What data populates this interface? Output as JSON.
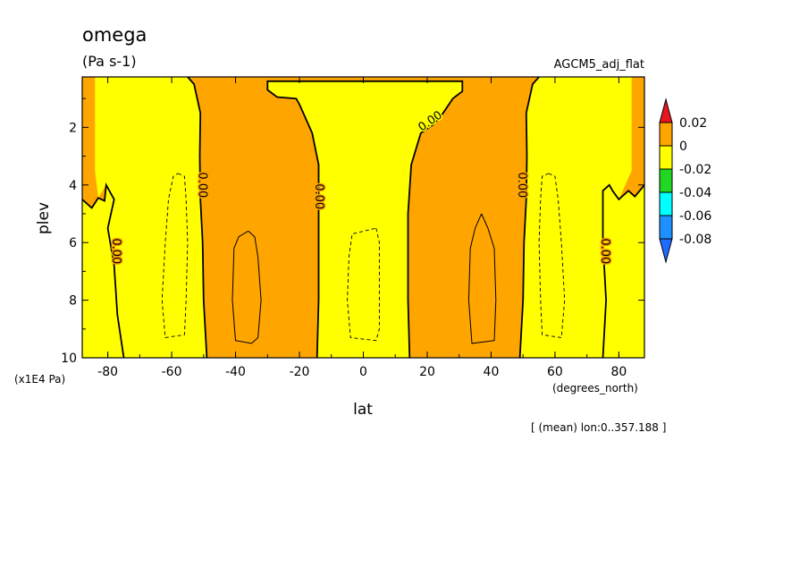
{
  "chart_data": {
    "type": "heatmap",
    "title": "omega",
    "units": "(Pa s-1)",
    "dataset_label": "AGCM5_adj_flat",
    "xlabel": "lat",
    "x_units": "(degrees_north)",
    "ylabel": "plev",
    "y_units": "(x1E4 Pa)",
    "footnote": "[ (mean) lon:0..357.188 ]",
    "xlim": [
      -88,
      88
    ],
    "ylim": [
      10,
      0.25
    ],
    "x_ticks": [
      {
        "value": -80,
        "label": "-80"
      },
      {
        "value": -60,
        "label": "-60"
      },
      {
        "value": -40,
        "label": "-40"
      },
      {
        "value": -20,
        "label": "-20"
      },
      {
        "value": 0,
        "label": "0"
      },
      {
        "value": 20,
        "label": "20"
      },
      {
        "value": 40,
        "label": "40"
      },
      {
        "value": 60,
        "label": "60"
      },
      {
        "value": 80,
        "label": "80"
      }
    ],
    "y_ticks": [
      {
        "value": 2,
        "label": "2"
      },
      {
        "value": 4,
        "label": "4"
      },
      {
        "value": 6,
        "label": "6"
      },
      {
        "value": 8,
        "label": "8"
      },
      {
        "value": 10,
        "label": "10"
      }
    ],
    "colorbar": {
      "levels": [
        {
          "label": "0.02",
          "value": 0.02
        },
        {
          "label": "0",
          "value": 0
        },
        {
          "label": "-0.02",
          "value": -0.02
        },
        {
          "label": "-0.04",
          "value": -0.04
        },
        {
          "label": "-0.06",
          "value": -0.06
        },
        {
          "label": "-0.08",
          "value": -0.08
        }
      ],
      "colors": [
        "#e8141e",
        "#ffa500",
        "#ffff00",
        "#21d721",
        "#00ffff",
        "#1e90ff",
        "#1e6cff"
      ]
    },
    "background_color": "#ffa500",
    "regions": [
      {
        "name": "negative-region-south-polar",
        "color": "#ffff00",
        "points": [
          [
            -88,
            4.5
          ],
          [
            -85,
            4.8
          ],
          [
            -83,
            4.45
          ],
          [
            -81,
            4.55
          ],
          [
            -80.5,
            4.0
          ],
          [
            -78,
            4.5
          ],
          [
            -80,
            5.5
          ],
          [
            -78,
            6.8
          ],
          [
            -77,
            8.5
          ],
          [
            -75,
            10
          ],
          [
            -88,
            10
          ]
        ]
      },
      {
        "name": "negative-region-south-midlat",
        "color": "#ffff00",
        "points": [
          [
            -84,
            0.25
          ],
          [
            -55,
            0.25
          ],
          [
            -53,
            0.5
          ],
          [
            -51,
            1.5
          ],
          [
            -51.2,
            3.0
          ],
          [
            -51,
            4.5
          ],
          [
            -50.3,
            6.0
          ],
          [
            -50,
            8
          ],
          [
            -49,
            10
          ],
          [
            -75,
            10
          ],
          [
            -77,
            8.5
          ],
          [
            -78,
            6.8
          ],
          [
            -80,
            5.5
          ],
          [
            -78,
            4.5
          ],
          [
            -80.5,
            4.0
          ],
          [
            -83,
            4.45
          ],
          [
            -84,
            3.5
          ]
        ]
      },
      {
        "name": "negative-region-equatorial",
        "color": "#ffff00",
        "points": [
          [
            -30,
            0.4
          ],
          [
            31,
            0.4
          ],
          [
            31,
            0.75
          ],
          [
            28,
            1.0
          ],
          [
            25,
            1.5
          ],
          [
            22,
            1.9
          ],
          [
            18,
            2.2
          ],
          [
            15,
            3.3
          ],
          [
            14,
            5.0
          ],
          [
            14,
            8.0
          ],
          [
            14.5,
            10
          ],
          [
            -14.5,
            10
          ],
          [
            -14,
            8.0
          ],
          [
            -14,
            5
          ],
          [
            -14,
            3.3
          ],
          [
            -16,
            2.2
          ],
          [
            -20,
            1.2
          ],
          [
            -21,
            1.0
          ],
          [
            -27,
            0.95
          ],
          [
            -30,
            0.7
          ]
        ]
      },
      {
        "name": "negative-region-north-midlat",
        "color": "#ffff00",
        "points": [
          [
            84,
            0.25
          ],
          [
            55,
            0.25
          ],
          [
            53,
            0.5
          ],
          [
            51,
            1.5
          ],
          [
            51.2,
            3.0
          ],
          [
            51,
            4.5
          ],
          [
            50.3,
            6.0
          ],
          [
            50,
            8
          ],
          [
            49,
            10
          ],
          [
            75,
            10
          ],
          [
            76,
            8
          ],
          [
            75,
            6
          ],
          [
            75,
            4.2
          ],
          [
            77,
            4.0
          ],
          [
            78,
            4.2
          ],
          [
            80,
            4.5
          ],
          [
            84,
            3.5
          ]
        ]
      },
      {
        "name": "negative-region-north-polar",
        "color": "#ffff00",
        "points": [
          [
            88,
            4.0
          ],
          [
            85,
            4.4
          ],
          [
            83,
            4.2
          ],
          [
            80,
            4.5
          ],
          [
            78,
            4.2
          ],
          [
            77,
            4.0
          ],
          [
            75,
            4.2
          ],
          [
            75,
            6
          ],
          [
            76,
            8
          ],
          [
            75,
            10
          ],
          [
            88,
            10
          ]
        ]
      }
    ],
    "contours": [
      {
        "name": "zero-contour-south-polar",
        "level": 0.0,
        "style": "solid",
        "points": [
          [
            -88,
            4.5
          ],
          [
            -85,
            4.8
          ],
          [
            -83,
            4.45
          ],
          [
            -81,
            4.55
          ],
          [
            -80.5,
            4.0
          ],
          [
            -78,
            4.5
          ],
          [
            -80,
            5.5
          ],
          [
            -78,
            6.8
          ],
          [
            -77,
            8.5
          ],
          [
            -75,
            10
          ]
        ],
        "label": "0.00",
        "label_at": [
          -77.5,
          6.3
        ],
        "label_angle": 90
      },
      {
        "name": "zero-contour-south-midlat",
        "level": 0.0,
        "style": "solid",
        "points": [
          [
            -55,
            0.25
          ],
          [
            -53,
            0.5
          ],
          [
            -51,
            1.5
          ],
          [
            -51.2,
            3.0
          ],
          [
            -51,
            4.5
          ],
          [
            -50.3,
            6.0
          ],
          [
            -50,
            8
          ],
          [
            -49,
            10
          ]
        ],
        "label": "0.00",
        "label_at": [
          -50.5,
          4.0
        ],
        "label_angle": 90
      },
      {
        "name": "zero-contour-equatorial",
        "level": 0.0,
        "style": "solid",
        "points": [
          [
            -14.5,
            10
          ],
          [
            -14,
            8
          ],
          [
            -14,
            5
          ],
          [
            -14,
            3.3
          ],
          [
            -16,
            2.2
          ],
          [
            -20,
            1.2
          ],
          [
            -21,
            1.0
          ],
          [
            -27,
            0.95
          ],
          [
            -30,
            0.7
          ],
          [
            -30,
            0.4
          ],
          [
            31,
            0.4
          ],
          [
            31,
            0.75
          ],
          [
            28,
            1.0
          ],
          [
            25,
            1.5
          ],
          [
            22,
            1.9
          ],
          [
            18,
            2.2
          ],
          [
            15,
            3.3
          ],
          [
            14,
            5.0
          ],
          [
            14,
            8.0
          ],
          [
            14.5,
            10
          ]
        ],
        "label": "0.00",
        "label_at": [
          -14,
          4.4
        ],
        "label_angle": 90
      },
      {
        "name": "zero-contour-equatorial-upper-label",
        "level": 0.0,
        "style": "none",
        "points": [],
        "label": "0.00",
        "label_at": [
          21,
          1.8
        ],
        "label_angle": -35
      },
      {
        "name": "zero-contour-north-midlat",
        "level": 0.0,
        "style": "solid",
        "points": [
          [
            55,
            0.25
          ],
          [
            53,
            0.5
          ],
          [
            51,
            1.5
          ],
          [
            51.2,
            3.0
          ],
          [
            51,
            4.5
          ],
          [
            50.3,
            6.0
          ],
          [
            50,
            8
          ],
          [
            49,
            10
          ]
        ],
        "label": "0.00",
        "label_at": [
          49.5,
          4.0
        ],
        "label_angle": 90
      },
      {
        "name": "zero-contour-north-polar",
        "level": 0.0,
        "style": "solid",
        "points": [
          [
            88,
            4.0
          ],
          [
            85,
            4.4
          ],
          [
            83,
            4.2
          ],
          [
            80,
            4.5
          ],
          [
            78,
            4.2
          ],
          [
            77,
            4.0
          ],
          [
            75,
            4.2
          ],
          [
            75,
            6
          ],
          [
            76,
            8
          ],
          [
            75,
            10
          ]
        ],
        "label": "0.00",
        "label_at": [
          75.5,
          6.3
        ],
        "label_angle": 90
      },
      {
        "name": "negative-contour-south",
        "level": -0.01,
        "style": "dashed",
        "points": [
          [
            -58,
            3.6
          ],
          [
            -56,
            3.7
          ],
          [
            -55.5,
            4.5
          ],
          [
            -55,
            6
          ],
          [
            -55.5,
            8
          ],
          [
            -56,
            9.2
          ],
          [
            -62,
            9.3
          ],
          [
            -63,
            8
          ],
          [
            -62,
            6
          ],
          [
            -61,
            4.5
          ],
          [
            -59.5,
            3.7
          ],
          [
            -58,
            3.6
          ]
        ]
      },
      {
        "name": "negative-contour-equator",
        "level": -0.01,
        "style": "dashed",
        "points": [
          [
            4,
            5.5
          ],
          [
            5,
            6
          ],
          [
            5,
            9
          ],
          [
            4,
            9.4
          ],
          [
            -4,
            9.3
          ],
          [
            -5,
            8
          ],
          [
            -4.5,
            6.5
          ],
          [
            -3.5,
            5.7
          ],
          [
            4,
            5.5
          ]
        ]
      },
      {
        "name": "negative-contour-north",
        "level": -0.01,
        "style": "dashed",
        "points": [
          [
            58,
            3.6
          ],
          [
            60,
            3.7
          ],
          [
            61,
            4.5
          ],
          [
            62,
            6
          ],
          [
            63,
            8
          ],
          [
            62,
            9.3
          ],
          [
            56,
            9.2
          ],
          [
            55.5,
            8
          ],
          [
            55,
            6
          ],
          [
            55.5,
            4.5
          ],
          [
            56,
            3.7
          ],
          [
            58,
            3.6
          ]
        ]
      },
      {
        "name": "positive-contour-south",
        "level": 0.01,
        "style": "solid-thin",
        "points": [
          [
            -36,
            5.6
          ],
          [
            -34,
            5.8
          ],
          [
            -33,
            6.5
          ],
          [
            -32,
            8
          ],
          [
            -33,
            9.3
          ],
          [
            -35,
            9.5
          ],
          [
            -40,
            9.4
          ],
          [
            -41,
            8
          ],
          [
            -40.5,
            6.2
          ],
          [
            -39,
            5.8
          ],
          [
            -36,
            5.6
          ]
        ]
      },
      {
        "name": "positive-contour-north",
        "level": 0.01,
        "style": "solid-thin",
        "points": [
          [
            37,
            5.0
          ],
          [
            39,
            5.5
          ],
          [
            41,
            6.2
          ],
          [
            41.5,
            8
          ],
          [
            41,
            9.4
          ],
          [
            34,
            9.5
          ],
          [
            33,
            8
          ],
          [
            33.5,
            6.2
          ],
          [
            35,
            5.5
          ],
          [
            37,
            5.0
          ]
        ]
      }
    ]
  }
}
